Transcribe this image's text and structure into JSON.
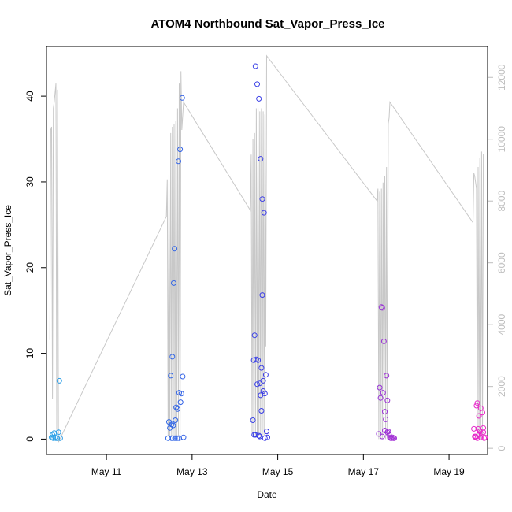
{
  "chart_data": {
    "type": "scatter",
    "title": "ATOM4 Northbound Sat_Vapor_Press_Ice",
    "xlabel": "Date",
    "ylabel": "Sat_Vapor_Press_Ice",
    "x_ticks": [
      "May 11",
      "May 13",
      "May 15",
      "May 17",
      "May 19"
    ],
    "xlim_days": [
      9.6,
      19.9
    ],
    "ylim": [
      -1.8,
      45.8
    ],
    "y_ticks": [
      0,
      10,
      20,
      30,
      40
    ],
    "y2lim": [
      -200,
      13000
    ],
    "y2_ticks": [
      0,
      2000,
      4000,
      6000,
      8000,
      10000,
      12000
    ],
    "colors": {
      "points_start": "#29a3e6",
      "points_mid": "#3a3ae6",
      "points_end": "#f028c8",
      "altitude_line": "#c8c8c8",
      "right_axis": "#bdbdbd"
    },
    "series": [
      {
        "kind": "points",
        "points": [
          [
            9.72,
            0.2
          ],
          [
            9.74,
            0.5
          ],
          [
            9.76,
            0.1
          ],
          [
            9.78,
            0.7
          ],
          [
            9.8,
            0.2
          ],
          [
            9.82,
            0.1
          ],
          [
            9.85,
            0.1
          ],
          [
            9.88,
            0.8
          ],
          [
            9.9,
            6.8
          ],
          [
            9.92,
            0.1
          ],
          [
            12.48,
            1.3
          ],
          [
            12.5,
            7.4
          ],
          [
            12.52,
            1.7
          ],
          [
            12.54,
            9.6
          ],
          [
            12.55,
            0.1
          ],
          [
            12.57,
            18.2
          ],
          [
            12.59,
            22.2
          ],
          [
            12.61,
            2.2
          ],
          [
            12.63,
            3.7
          ],
          [
            12.65,
            0.1
          ],
          [
            12.68,
            32.4
          ],
          [
            12.7,
            5.4
          ],
          [
            12.72,
            33.8
          ],
          [
            12.73,
            4.3
          ],
          [
            12.75,
            5.3
          ],
          [
            12.77,
            39.8
          ],
          [
            12.78,
            7.3
          ],
          [
            12.8,
            0.2
          ],
          [
            12.52,
            0.1
          ],
          [
            12.6,
            0.1
          ],
          [
            12.7,
            0.1
          ],
          [
            12.44,
            0.1
          ],
          [
            12.46,
            2.0
          ],
          [
            12.56,
            1.6
          ],
          [
            12.66,
            3.5
          ],
          [
            14.42,
            2.2
          ],
          [
            14.44,
            9.2
          ],
          [
            14.46,
            12.1
          ],
          [
            14.48,
            43.5
          ],
          [
            14.5,
            9.3
          ],
          [
            14.52,
            41.4
          ],
          [
            14.54,
            9.2
          ],
          [
            14.56,
            39.7
          ],
          [
            14.58,
            6.5
          ],
          [
            14.6,
            32.7
          ],
          [
            14.62,
            8.3
          ],
          [
            14.64,
            28.0
          ],
          [
            14.66,
            5.6
          ],
          [
            14.68,
            26.4
          ],
          [
            14.7,
            5.3
          ],
          [
            14.72,
            7.5
          ],
          [
            14.74,
            0.9
          ],
          [
            14.76,
            0.2
          ],
          [
            14.62,
            3.3
          ],
          [
            14.64,
            16.8
          ],
          [
            14.45,
            0.5
          ],
          [
            14.52,
            6.4
          ],
          [
            14.56,
            0.4
          ],
          [
            14.6,
            5.1
          ],
          [
            14.66,
            6.8
          ],
          [
            14.7,
            0.1
          ],
          [
            14.48,
            0.5
          ],
          [
            14.58,
            0.3
          ],
          [
            17.38,
            6.0
          ],
          [
            17.4,
            4.8
          ],
          [
            17.42,
            15.4
          ],
          [
            17.44,
            15.3
          ],
          [
            17.46,
            5.4
          ],
          [
            17.48,
            11.4
          ],
          [
            17.5,
            3.2
          ],
          [
            17.52,
            2.3
          ],
          [
            17.54,
            7.4
          ],
          [
            17.56,
            4.5
          ],
          [
            17.58,
            0.9
          ],
          [
            17.6,
            0.5
          ],
          [
            17.62,
            0.2
          ],
          [
            17.64,
            0.1
          ],
          [
            17.66,
            0.1
          ],
          [
            17.68,
            0.2
          ],
          [
            17.7,
            0.1
          ],
          [
            17.72,
            0.1
          ],
          [
            17.36,
            0.6
          ],
          [
            17.44,
            0.3
          ],
          [
            17.5,
            1.0
          ],
          [
            17.56,
            0.8
          ],
          [
            19.58,
            1.2
          ],
          [
            19.6,
            0.3
          ],
          [
            19.62,
            0.2
          ],
          [
            19.64,
            3.9
          ],
          [
            19.66,
            4.2
          ],
          [
            19.68,
            1.2
          ],
          [
            19.7,
            2.7
          ],
          [
            19.72,
            0.9
          ],
          [
            19.74,
            3.6
          ],
          [
            19.76,
            0.6
          ],
          [
            19.78,
            3.1
          ],
          [
            19.8,
            1.3
          ],
          [
            19.82,
            0.1
          ],
          [
            19.84,
            0.2
          ],
          [
            19.66,
            0.1
          ],
          [
            19.7,
            0.5
          ],
          [
            19.74,
            0.2
          ],
          [
            19.8,
            0.8
          ],
          [
            19.62,
            0.3
          ]
        ]
      },
      {
        "kind": "altitude_line",
        "axis": "right",
        "points": [
          [
            9.68,
            3500
          ],
          [
            9.7,
            10300
          ],
          [
            9.72,
            10400
          ],
          [
            9.74,
            1600
          ],
          [
            9.76,
            11000
          ],
          [
            9.78,
            11200
          ],
          [
            9.8,
            11500
          ],
          [
            9.82,
            11800
          ],
          [
            9.84,
            600
          ],
          [
            9.86,
            11600
          ],
          [
            9.88,
            200
          ],
          [
            12.4,
            7500
          ],
          [
            12.42,
            8700
          ],
          [
            12.44,
            400
          ],
          [
            12.46,
            8900
          ],
          [
            12.48,
            400
          ],
          [
            12.5,
            10200
          ],
          [
            12.52,
            400
          ],
          [
            12.54,
            10400
          ],
          [
            12.56,
            400
          ],
          [
            12.58,
            10500
          ],
          [
            12.6,
            400
          ],
          [
            12.62,
            10600
          ],
          [
            12.64,
            400
          ],
          [
            12.66,
            11000
          ],
          [
            12.68,
            400
          ],
          [
            12.7,
            11800
          ],
          [
            12.72,
            400
          ],
          [
            12.74,
            12200
          ],
          [
            12.76,
            10300
          ],
          [
            12.8,
            11200
          ],
          [
            14.36,
            7700
          ],
          [
            14.38,
            9500
          ],
          [
            14.4,
            400
          ],
          [
            14.42,
            10000
          ],
          [
            14.44,
            400
          ],
          [
            14.46,
            10200
          ],
          [
            14.48,
            400
          ],
          [
            14.5,
            11000
          ],
          [
            14.52,
            400
          ],
          [
            14.54,
            11000
          ],
          [
            14.56,
            400
          ],
          [
            14.58,
            10900
          ],
          [
            14.6,
            400
          ],
          [
            14.62,
            11000
          ],
          [
            14.64,
            400
          ],
          [
            14.66,
            10900
          ],
          [
            14.68,
            400
          ],
          [
            14.7,
            10800
          ],
          [
            14.72,
            3300
          ],
          [
            14.74,
            12700
          ],
          [
            17.32,
            8000
          ],
          [
            17.34,
            8400
          ],
          [
            17.36,
            300
          ],
          [
            17.38,
            8300
          ],
          [
            17.4,
            300
          ],
          [
            17.42,
            8400
          ],
          [
            17.44,
            300
          ],
          [
            17.46,
            8600
          ],
          [
            17.48,
            300
          ],
          [
            17.5,
            8800
          ],
          [
            17.52,
            300
          ],
          [
            17.54,
            9100
          ],
          [
            17.56,
            300
          ],
          [
            17.58,
            10500
          ],
          [
            17.6,
            10700
          ],
          [
            17.62,
            11200
          ],
          [
            19.56,
            7300
          ],
          [
            19.58,
            8900
          ],
          [
            19.6,
            8800
          ],
          [
            19.62,
            8600
          ],
          [
            19.64,
            8400
          ],
          [
            19.66,
            300
          ],
          [
            19.68,
            9100
          ],
          [
            19.7,
            300
          ],
          [
            19.72,
            9400
          ],
          [
            19.74,
            300
          ],
          [
            19.76,
            9600
          ],
          [
            19.78,
            300
          ],
          [
            19.8,
            9500
          ],
          [
            19.82,
            9500
          ]
        ]
      }
    ]
  }
}
